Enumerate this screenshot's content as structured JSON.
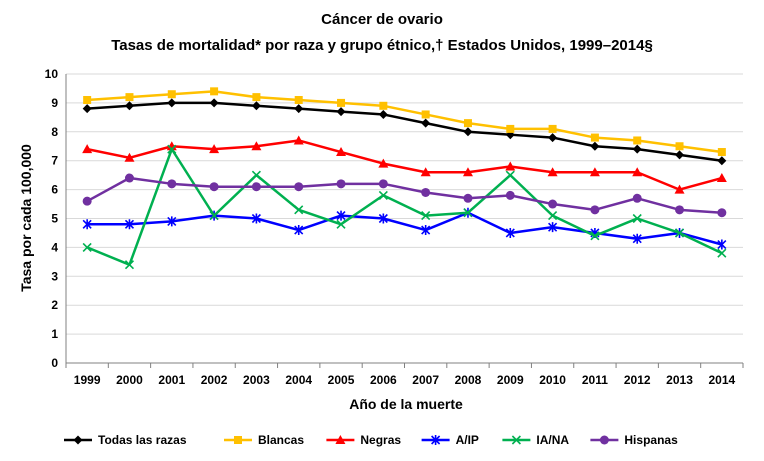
{
  "chart_data": {
    "type": "line",
    "title": "Cáncer de ovario",
    "subtitle": "Tasas de mortalidad* por raza y grupo étnico,† Estados Unidos, 1999–2014§",
    "xlabel": "Año de la muerte",
    "ylabel": "Tasa por cada 100,000",
    "ylim": [
      0,
      10
    ],
    "yticks": [
      0,
      1,
      2,
      3,
      4,
      5,
      6,
      7,
      8,
      9,
      10
    ],
    "grid": true,
    "legend_position": "bottom",
    "categories": [
      "1999",
      "2000",
      "2001",
      "2002",
      "2003",
      "2004",
      "2005",
      "2006",
      "2007",
      "2008",
      "2009",
      "2010",
      "2011",
      "2012",
      "2013",
      "2014"
    ],
    "series": [
      {
        "name": "Todas las razas",
        "color": "#000000",
        "marker": "diamond",
        "values": [
          8.8,
          8.9,
          9.0,
          9.0,
          8.9,
          8.8,
          8.7,
          8.6,
          8.3,
          8.0,
          7.9,
          7.8,
          7.5,
          7.4,
          7.2,
          7.0
        ]
      },
      {
        "name": "Blancas",
        "color": "#FFC000",
        "marker": "square",
        "values": [
          9.1,
          9.2,
          9.3,
          9.4,
          9.2,
          9.1,
          9.0,
          8.9,
          8.6,
          8.3,
          8.1,
          8.1,
          7.8,
          7.7,
          7.5,
          7.3
        ]
      },
      {
        "name": "Negras",
        "color": "#FF0000",
        "marker": "triangle",
        "values": [
          7.4,
          7.1,
          7.5,
          7.4,
          7.5,
          7.7,
          7.3,
          6.9,
          6.6,
          6.6,
          6.8,
          6.6,
          6.6,
          6.6,
          6.0,
          6.4
        ]
      },
      {
        "name": "A/IP",
        "color": "#0000FF",
        "marker": "asterisk",
        "values": [
          4.8,
          4.8,
          4.9,
          5.1,
          5.0,
          4.6,
          5.1,
          5.0,
          4.6,
          5.2,
          4.5,
          4.7,
          4.5,
          4.3,
          4.5,
          4.1
        ]
      },
      {
        "name": "IA/NA",
        "color": "#00B050",
        "marker": "x",
        "values": [
          4.0,
          3.4,
          7.4,
          5.1,
          6.5,
          5.3,
          4.8,
          5.8,
          5.1,
          5.2,
          6.5,
          5.1,
          4.4,
          5.0,
          4.5,
          3.8
        ]
      },
      {
        "name": "Hispanas",
        "color": "#7030A0",
        "marker": "circle",
        "values": [
          5.6,
          6.4,
          6.2,
          6.1,
          6.1,
          6.1,
          6.2,
          6.2,
          5.9,
          5.7,
          5.8,
          5.5,
          5.3,
          5.7,
          5.3,
          5.2
        ]
      }
    ]
  }
}
